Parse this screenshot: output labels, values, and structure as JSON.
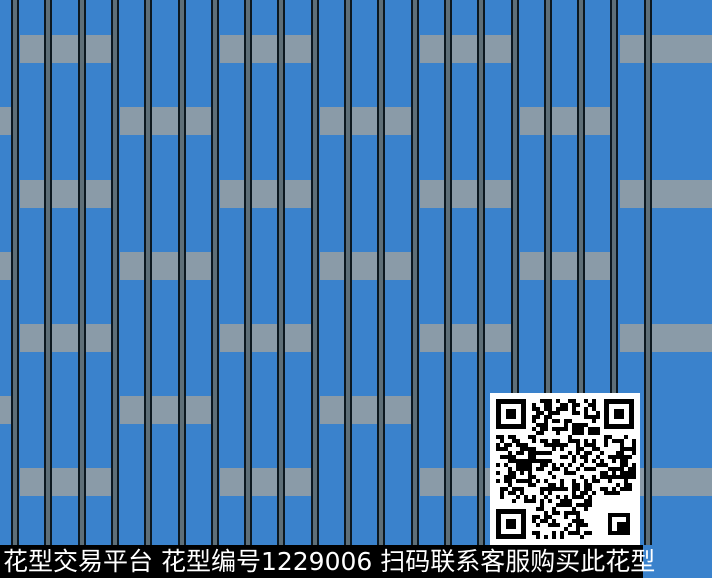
{
  "colors": {
    "background": "#3a82cc",
    "band": "#8a9ba8",
    "bar": "#5e6f78",
    "outline": "#0c1820"
  },
  "watermark": {
    "text": "花型交易平台 花型编号1229006 扫码联系客服购买此花型"
  },
  "qr_code": {
    "icon": "qr-code-icon"
  }
}
